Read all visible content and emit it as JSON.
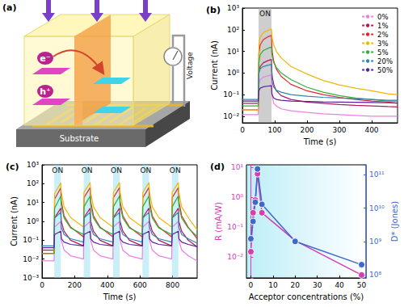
{
  "diagram": {
    "title": "(a)",
    "electron": "e⁻",
    "hole": "h⁺",
    "meter": "Voltage",
    "substrate": "Substrate"
  },
  "chart_data": [
    {
      "type": "line",
      "title": "(b)",
      "xlabel": "Time (s)",
      "ylabel": "Current (nA)",
      "log": "y",
      "grid": false,
      "legend": "upper right",
      "annotations": [
        {
          "label": "ON",
          "x": [
            50,
            90
          ]
        }
      ],
      "x": [
        0,
        20,
        40,
        49,
        51,
        55,
        65,
        80,
        90,
        91,
        93,
        97,
        105,
        120,
        150,
        200,
        250,
        300,
        350,
        400,
        450,
        480
      ],
      "series": [
        {
          "name": "0%",
          "color": "#ee7ee6",
          "values": [
            0.012,
            0.012,
            0.012,
            0.012,
            0.3,
            0.5,
            0.65,
            0.75,
            0.8,
            0.15,
            0.07,
            0.04,
            0.03,
            0.022,
            0.018,
            0.015,
            0.013,
            0.012,
            0.011,
            0.01,
            0.01,
            0.01
          ]
        },
        {
          "name": "1%",
          "color": "#b3195e",
          "values": [
            0.04,
            0.04,
            0.04,
            0.04,
            1,
            2,
            3,
            3.8,
            4.2,
            1.2,
            0.6,
            0.3,
            0.15,
            0.09,
            0.06,
            0.045,
            0.04,
            0.035,
            0.032,
            0.03,
            0.028,
            0.027
          ]
        },
        {
          "name": "2%",
          "color": "#e3262b",
          "values": [
            0.02,
            0.02,
            0.02,
            0.02,
            8,
            20,
            35,
            48,
            55,
            20,
            8,
            3.5,
            1.5,
            0.7,
            0.3,
            0.15,
            0.1,
            0.075,
            0.06,
            0.05,
            0.045,
            0.04
          ]
        },
        {
          "name": "3%",
          "color": "#f2b705",
          "values": [
            0.02,
            0.02,
            0.02,
            0.02,
            20,
            45,
            75,
            95,
            110,
            60,
            35,
            20,
            10,
            5,
            2,
            0.9,
            0.45,
            0.28,
            0.2,
            0.15,
            0.11,
            0.1
          ]
        },
        {
          "name": "5%",
          "color": "#2fb03a",
          "values": [
            0.03,
            0.03,
            0.03,
            0.03,
            3,
            7,
            11,
            14,
            16,
            8,
            5,
            3,
            1.8,
            1,
            0.5,
            0.22,
            0.13,
            0.09,
            0.07,
            0.06,
            0.05,
            0.05
          ]
        },
        {
          "name": "20%",
          "color": "#2f86b0",
          "values": [
            0.06,
            0.06,
            0.06,
            0.06,
            1,
            1.6,
            2,
            2.3,
            2.5,
            0.6,
            0.35,
            0.22,
            0.16,
            0.13,
            0.1,
            0.085,
            0.075,
            0.07,
            0.065,
            0.06,
            0.055,
            0.055
          ]
        },
        {
          "name": "50%",
          "color": "#5b1f9c",
          "values": [
            0.05,
            0.05,
            0.05,
            0.05,
            0.15,
            0.2,
            0.23,
            0.25,
            0.26,
            0.12,
            0.09,
            0.07,
            0.06,
            0.055,
            0.05,
            0.048,
            0.046,
            0.045,
            0.044,
            0.043,
            0.042,
            0.042
          ]
        }
      ],
      "xlim": [
        0,
        480
      ],
      "xticks": [
        0,
        100,
        200,
        300,
        400
      ],
      "ylim": [
        0.005,
        1000
      ],
      "yticks": [
        {
          "value": 0.01,
          "label": "10⁻²"
        },
        {
          "value": 0.1,
          "label": "10⁻¹"
        },
        {
          "value": 1,
          "label": "10⁰"
        },
        {
          "value": 10,
          "label": "10¹"
        },
        {
          "value": 100,
          "label": "10²"
        },
        {
          "value": 1000,
          "label": "10³"
        }
      ]
    },
    {
      "type": "line",
      "title": "(c)",
      "xlabel": "Time (s)",
      "ylabel": "Current (nA)",
      "log": "y",
      "grid": false,
      "annotations": [
        {
          "label": "ON",
          "x": [
            75,
            115
          ]
        },
        {
          "label": "ON",
          "x": [
            255,
            295
          ]
        },
        {
          "label": "ON",
          "x": [
            435,
            475
          ]
        },
        {
          "label": "ON",
          "x": [
            615,
            655
          ]
        },
        {
          "label": "ON",
          "x": [
            795,
            835
          ]
        }
      ],
      "x": [
        0,
        74,
        77,
        115,
        118,
        135,
        175,
        254,
        257,
        295,
        298,
        315,
        355,
        434,
        437,
        475,
        478,
        495,
        535,
        614,
        617,
        655,
        658,
        675,
        715,
        794,
        797,
        835,
        838,
        855,
        895,
        950
      ],
      "series": [
        {
          "color": "#ee7ee6",
          "values": [
            0.008,
            0.008,
            0.5,
            1,
            0.1,
            0.03,
            0.015,
            0.01,
            0.5,
            1,
            0.1,
            0.03,
            0.015,
            0.01,
            0.5,
            1,
            0.1,
            0.03,
            0.015,
            0.01,
            0.5,
            1,
            0.1,
            0.03,
            0.015,
            0.01,
            0.5,
            1,
            0.1,
            0.03,
            0.015,
            0.008
          ]
        },
        {
          "color": "#b3195e",
          "values": [
            0.03,
            0.03,
            1.5,
            5,
            1,
            0.3,
            0.1,
            0.05,
            1.6,
            5,
            1,
            0.3,
            0.1,
            0.05,
            1.6,
            5,
            1,
            0.3,
            0.1,
            0.05,
            1.6,
            5,
            1,
            0.3,
            0.1,
            0.05,
            1.6,
            5,
            1,
            0.3,
            0.1,
            0.045
          ]
        },
        {
          "color": "#e3262b",
          "values": [
            0.02,
            0.02,
            15,
            60,
            12,
            2,
            0.5,
            0.15,
            18,
            62,
            12,
            2,
            0.5,
            0.15,
            18,
            62,
            12,
            2,
            0.5,
            0.15,
            18,
            62,
            12,
            2,
            0.5,
            0.15,
            18,
            62,
            12,
            2,
            0.5,
            0.12
          ]
        },
        {
          "color": "#f2b705",
          "values": [
            0.02,
            0.02,
            30,
            110,
            35,
            6,
            1.6,
            0.5,
            35,
            115,
            35,
            6,
            1.6,
            0.5,
            35,
            115,
            35,
            6,
            1.6,
            0.5,
            35,
            115,
            35,
            6,
            1.6,
            0.5,
            35,
            115,
            35,
            6,
            1.6,
            0.35
          ]
        },
        {
          "color": "#2fb03a",
          "values": [
            0.02,
            0.02,
            5,
            22,
            7,
            1.5,
            0.45,
            0.2,
            6,
            22,
            7,
            1.5,
            0.45,
            0.2,
            6,
            22,
            7,
            1.5,
            0.45,
            0.2,
            6,
            22,
            7,
            1.5,
            0.45,
            0.2,
            6,
            22,
            7,
            1.5,
            0.45,
            0.16
          ]
        },
        {
          "color": "#2f86b0",
          "values": [
            0.05,
            0.05,
            1.5,
            3,
            0.5,
            0.2,
            0.12,
            0.08,
            1.5,
            3,
            0.5,
            0.2,
            0.12,
            0.08,
            1.5,
            3,
            0.5,
            0.2,
            0.12,
            0.08,
            1.5,
            3,
            0.5,
            0.2,
            0.12,
            0.08,
            1.5,
            3,
            0.5,
            0.2,
            0.12,
            0.07
          ]
        },
        {
          "color": "#5b1f9c",
          "values": [
            0.04,
            0.04,
            0.2,
            0.3,
            0.12,
            0.08,
            0.06,
            0.05,
            0.2,
            0.3,
            0.12,
            0.08,
            0.06,
            0.05,
            0.2,
            0.3,
            0.12,
            0.08,
            0.06,
            0.05,
            0.2,
            0.3,
            0.12,
            0.08,
            0.06,
            0.05,
            0.2,
            0.3,
            0.12,
            0.08,
            0.06,
            0.045
          ]
        }
      ],
      "xlim": [
        0,
        950
      ],
      "xticks": [
        0,
        200,
        400,
        600,
        800
      ],
      "ylim": [
        0.001,
        1000
      ],
      "yticks": [
        {
          "value": 0.001,
          "label": "10⁻³"
        },
        {
          "value": 0.01,
          "label": "10⁻²"
        },
        {
          "value": 0.1,
          "label": "10⁻¹"
        },
        {
          "value": 1,
          "label": "10⁰"
        },
        {
          "value": 10,
          "label": "10¹"
        },
        {
          "value": 100,
          "label": "10²"
        },
        {
          "value": 1000,
          "label": "10³"
        }
      ]
    },
    {
      "type": "line",
      "title": "(d)",
      "xlabel": "Acceptor concentrations (%)",
      "ylabel": "R (mA/W)",
      "y2label": "D* (Jones)",
      "log": "y",
      "grid": false,
      "x": [
        0,
        1,
        2,
        3,
        5,
        20,
        50
      ],
      "series": [
        {
          "color": "#d63cb4",
          "marker": "circle",
          "values": [
            0.015,
            0.3,
            0.8,
            6,
            0.3,
            0.035,
            0.0025
          ]
        },
        {
          "color": "#3f68cc",
          "marker": "circle",
          "axis": "y2",
          "values": [
            1200000000,
            4000000000,
            15000000000,
            150000000000,
            13000000000,
            1000000000,
            200000000
          ]
        }
      ],
      "xlim": [
        -2,
        52
      ],
      "xticks": [
        0,
        10,
        20,
        30,
        40,
        50
      ],
      "ylim": [
        0.002,
        12
      ],
      "yticks": [
        {
          "value": 0.01,
          "label": "10⁻²"
        },
        {
          "value": 0.1,
          "label": "10⁻¹"
        },
        {
          "value": 1,
          "label": "10⁰"
        },
        {
          "value": 10,
          "label": "10¹"
        }
      ],
      "y2lim": [
        80000000,
        200000000000
      ],
      "y2ticks": [
        {
          "value": 100000000,
          "label": "10⁸"
        },
        {
          "value": 1000000000,
          "label": "10⁹"
        },
        {
          "value": 10000000000,
          "label": "10¹⁰"
        },
        {
          "value": 100000000000,
          "label": "10¹¹"
        }
      ]
    }
  ]
}
